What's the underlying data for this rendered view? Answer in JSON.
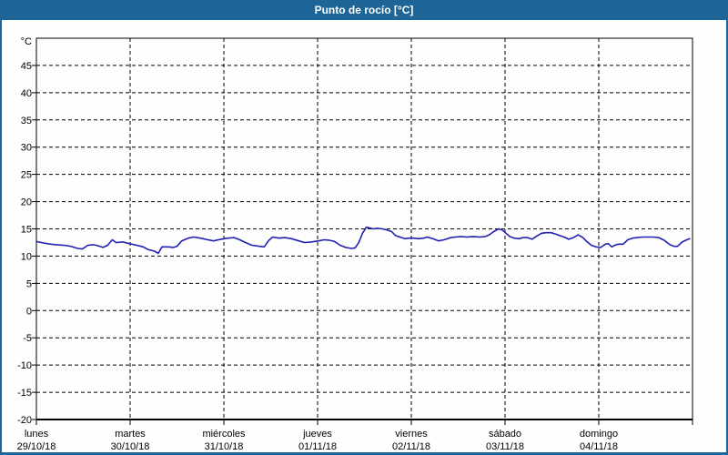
{
  "window": {
    "title": "Punto de rocío [°C]",
    "titlebar_bg": "#1d6596",
    "title_color": "#ffffff",
    "border_color": "#1d6596",
    "content_bg": "#fdfefd"
  },
  "chart_data": {
    "type": "line",
    "title": "Punto de rocío [°C]",
    "legend": "none",
    "grid": {
      "style": "dashed",
      "color": "#000000"
    },
    "axis_color": "#000000",
    "y_axis": {
      "unit": "°C",
      "ylim": [
        -20,
        50
      ],
      "ticks": [
        45,
        40,
        35,
        30,
        25,
        20,
        15,
        10,
        5,
        0,
        -5,
        -10,
        -15,
        -20
      ]
    },
    "x_axis": {
      "days": [
        {
          "label": "lunes",
          "date": "29/10/18"
        },
        {
          "label": "martes",
          "date": "30/10/18"
        },
        {
          "label": "miércoles",
          "date": "31/10/18"
        },
        {
          "label": "jueves",
          "date": "01/11/18"
        },
        {
          "label": "viernes",
          "date": "02/11/18"
        },
        {
          "label": "sábado",
          "date": "03/11/18"
        },
        {
          "label": "domingo",
          "date": "04/11/18"
        }
      ]
    },
    "series": [
      {
        "name": "Punto de rocío",
        "color": "#2121b2",
        "points": [
          [
            0,
            12.7
          ],
          [
            0.08,
            12.4
          ],
          [
            0.15,
            12.2
          ],
          [
            0.21,
            12.1
          ],
          [
            0.29,
            12.0
          ],
          [
            0.37,
            11.8
          ],
          [
            0.44,
            11.4
          ],
          [
            0.49,
            11.3
          ],
          [
            0.55,
            12.0
          ],
          [
            0.61,
            12.1
          ],
          [
            0.66,
            11.9
          ],
          [
            0.71,
            11.6
          ],
          [
            0.76,
            12.0
          ],
          [
            0.81,
            13.0
          ],
          [
            0.85,
            12.5
          ],
          [
            0.92,
            12.6
          ],
          [
            0.99,
            12.3
          ],
          [
            1.07,
            12.0
          ],
          [
            1.14,
            11.7
          ],
          [
            1.19,
            11.2
          ],
          [
            1.26,
            10.9
          ],
          [
            1.3,
            10.5
          ],
          [
            1.34,
            11.7
          ],
          [
            1.41,
            11.7
          ],
          [
            1.46,
            11.6
          ],
          [
            1.5,
            11.8
          ],
          [
            1.55,
            12.8
          ],
          [
            1.62,
            13.3
          ],
          [
            1.68,
            13.5
          ],
          [
            1.75,
            13.3
          ],
          [
            1.83,
            13.0
          ],
          [
            1.89,
            12.8
          ],
          [
            1.97,
            13.1
          ],
          [
            2.04,
            13.3
          ],
          [
            2.11,
            13.4
          ],
          [
            2.17,
            13.0
          ],
          [
            2.23,
            12.5
          ],
          [
            2.3,
            12.0
          ],
          [
            2.38,
            11.8
          ],
          [
            2.43,
            11.7
          ],
          [
            2.48,
            12.9
          ],
          [
            2.52,
            13.5
          ],
          [
            2.59,
            13.3
          ],
          [
            2.65,
            13.4
          ],
          [
            2.72,
            13.2
          ],
          [
            2.8,
            12.8
          ],
          [
            2.86,
            12.5
          ],
          [
            2.93,
            12.6
          ],
          [
            3.01,
            12.8
          ],
          [
            3.07,
            13.0
          ],
          [
            3.13,
            12.9
          ],
          [
            3.18,
            12.7
          ],
          [
            3.24,
            12.0
          ],
          [
            3.3,
            11.6
          ],
          [
            3.36,
            11.4
          ],
          [
            3.4,
            11.5
          ],
          [
            3.44,
            12.5
          ],
          [
            3.48,
            14.2
          ],
          [
            3.52,
            15.3
          ],
          [
            3.55,
            15.2
          ],
          [
            3.59,
            15.0
          ],
          [
            3.64,
            15.1
          ],
          [
            3.69,
            15.0
          ],
          [
            3.74,
            14.8
          ],
          [
            3.79,
            14.5
          ],
          [
            3.83,
            13.8
          ],
          [
            3.88,
            13.5
          ],
          [
            3.93,
            13.2
          ],
          [
            3.98,
            13.3
          ],
          [
            4.03,
            13.3
          ],
          [
            4.08,
            13.2
          ],
          [
            4.13,
            13.3
          ],
          [
            4.17,
            13.5
          ],
          [
            4.23,
            13.2
          ],
          [
            4.29,
            12.8
          ],
          [
            4.35,
            13.0
          ],
          [
            4.42,
            13.4
          ],
          [
            4.47,
            13.5
          ],
          [
            4.53,
            13.6
          ],
          [
            4.59,
            13.5
          ],
          [
            4.66,
            13.6
          ],
          [
            4.73,
            13.5
          ],
          [
            4.79,
            13.6
          ],
          [
            4.83,
            13.9
          ],
          [
            4.88,
            14.5
          ],
          [
            4.93,
            15.0
          ],
          [
            4.97,
            14.8
          ],
          [
            5.01,
            14.2
          ],
          [
            5.05,
            13.6
          ],
          [
            5.1,
            13.3
          ],
          [
            5.15,
            13.2
          ],
          [
            5.19,
            13.4
          ],
          [
            5.24,
            13.4
          ],
          [
            5.29,
            13.1
          ],
          [
            5.34,
            13.7
          ],
          [
            5.39,
            14.2
          ],
          [
            5.44,
            14.3
          ],
          [
            5.49,
            14.3
          ],
          [
            5.53,
            14.1
          ],
          [
            5.58,
            13.8
          ],
          [
            5.63,
            13.5
          ],
          [
            5.68,
            13.1
          ],
          [
            5.73,
            13.4
          ],
          [
            5.78,
            13.9
          ],
          [
            5.83,
            13.4
          ],
          [
            5.87,
            12.7
          ],
          [
            5.92,
            12.0
          ],
          [
            5.97,
            11.7
          ],
          [
            6.02,
            11.6
          ],
          [
            6.07,
            12.2
          ],
          [
            6.1,
            12.3
          ],
          [
            6.14,
            11.7
          ],
          [
            6.17,
            12.0
          ],
          [
            6.21,
            12.2
          ],
          [
            6.26,
            12.2
          ],
          [
            6.31,
            13.0
          ],
          [
            6.36,
            13.3
          ],
          [
            6.41,
            13.4
          ],
          [
            6.47,
            13.5
          ],
          [
            6.52,
            13.5
          ],
          [
            6.58,
            13.5
          ],
          [
            6.64,
            13.4
          ],
          [
            6.7,
            12.9
          ],
          [
            6.75,
            12.2
          ],
          [
            6.8,
            11.8
          ],
          [
            6.84,
            11.8
          ],
          [
            6.89,
            12.6
          ],
          [
            6.94,
            13.0
          ],
          [
            6.97,
            13.2
          ]
        ]
      }
    ]
  }
}
